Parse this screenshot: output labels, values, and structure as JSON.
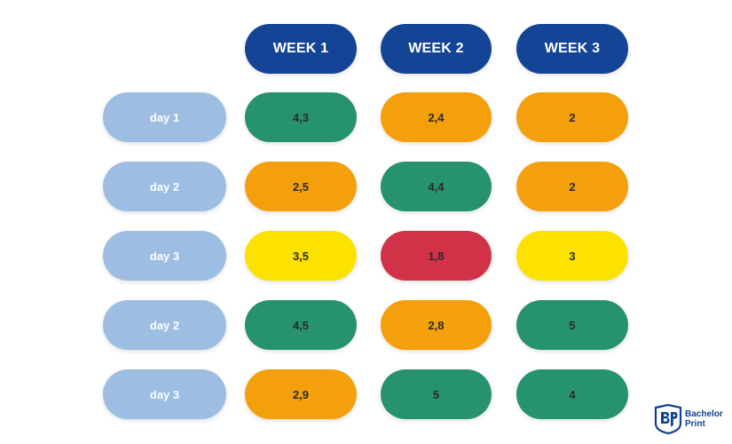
{
  "colors": {
    "header": "#144495",
    "row_label": "#9dbde2",
    "green": "#279270",
    "orange": "#f49f0c",
    "yellow": "#fde200",
    "red": "#d13248",
    "logo": "#12418c"
  },
  "table": {
    "headers": [
      "WEEK 1",
      "WEEK 2",
      "WEEK 3"
    ],
    "rows": [
      {
        "label": "day 1",
        "cells": [
          {
            "value": "4,3",
            "color": "green"
          },
          {
            "value": "2,4",
            "color": "orange"
          },
          {
            "value": "2",
            "color": "orange"
          }
        ]
      },
      {
        "label": "day 2",
        "cells": [
          {
            "value": "2,5",
            "color": "orange"
          },
          {
            "value": "4,4",
            "color": "green"
          },
          {
            "value": "2",
            "color": "orange"
          }
        ]
      },
      {
        "label": "day 3",
        "cells": [
          {
            "value": "3,5",
            "color": "yellow"
          },
          {
            "value": "1,8",
            "color": "red"
          },
          {
            "value": "3",
            "color": "yellow"
          }
        ]
      },
      {
        "label": "day 2",
        "cells": [
          {
            "value": "4,5",
            "color": "green"
          },
          {
            "value": "2,8",
            "color": "orange"
          },
          {
            "value": "5",
            "color": "green"
          }
        ]
      },
      {
        "label": "day 3",
        "cells": [
          {
            "value": "2,9",
            "color": "orange"
          },
          {
            "value": "5",
            "color": "green"
          },
          {
            "value": "4",
            "color": "green"
          }
        ]
      }
    ]
  },
  "logo": {
    "line1": "Bachelor",
    "line2": "Print",
    "icon": "bachelorprint-logo-icon"
  }
}
